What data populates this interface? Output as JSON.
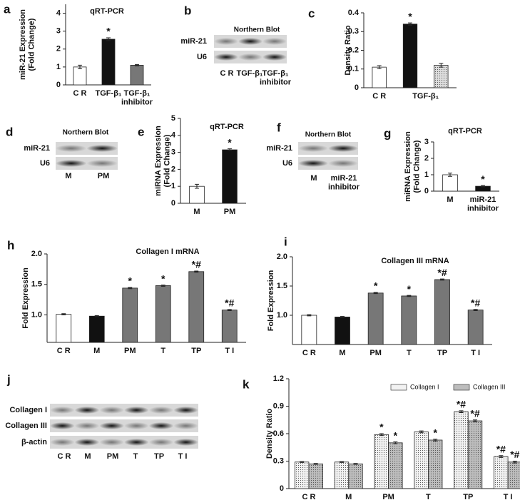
{
  "chart_data": [
    {
      "panel": "a",
      "type": "bar",
      "title": "qRT-PCR",
      "ylabel": "miR-21 Expression\n(Fold Change)",
      "categories": [
        "C R",
        "TGF-β₁",
        "TGF-β₁\ninhibitor"
      ],
      "values": [
        1.0,
        2.55,
        1.1
      ],
      "errors": [
        0.1,
        0.08,
        0.04
      ],
      "colors": [
        "#ffffff",
        "#111111",
        "#777777"
      ],
      "annotations": [
        null,
        "*",
        null
      ],
      "ylim": [
        0,
        4.5
      ],
      "yticks": [
        0,
        1,
        2,
        3,
        4
      ]
    },
    {
      "panel": "c",
      "type": "bar",
      "ylabel": "Density Ratio",
      "categories": [
        "C R",
        null,
        null
      ],
      "category_groups": [
        {
          "label": "TGF-β₁",
          "span": [
            1,
            2
          ]
        }
      ],
      "values": [
        0.11,
        0.34,
        0.12
      ],
      "errors": [
        0.008,
        0.006,
        0.01
      ],
      "colors": [
        "#ffffff",
        "#111111",
        "#dddddd"
      ],
      "annotations": [
        null,
        "*",
        null
      ],
      "ylim": [
        0,
        0.4
      ],
      "yticks": [
        0,
        0.1,
        0.2,
        0.3,
        0.4
      ]
    },
    {
      "panel": "e",
      "type": "bar",
      "title": "qRT-PCR",
      "ylabel": "miRNA Expression\n(Fold Change)",
      "categories": [
        "M",
        "PM"
      ],
      "values": [
        1.0,
        3.15
      ],
      "errors": [
        0.12,
        0.06
      ],
      "colors": [
        "#ffffff",
        "#111111"
      ],
      "annotations": [
        null,
        "*"
      ],
      "ylim": [
        0,
        5
      ],
      "yticks": [
        0,
        1,
        2,
        3,
        4,
        5
      ]
    },
    {
      "panel": "g",
      "type": "bar",
      "title": "qRT-PCR",
      "ylabel": "miRNA Expression\n(Fold Change)",
      "categories": [
        "M",
        "miR-21\ninhibitor"
      ],
      "values": [
        1.0,
        0.3
      ],
      "errors": [
        0.1,
        0.04
      ],
      "colors": [
        "#ffffff",
        "#111111"
      ],
      "annotations": [
        null,
        "*"
      ],
      "ylim": [
        0,
        3
      ],
      "yticks": [
        0,
        1,
        2,
        3
      ]
    },
    {
      "panel": "h",
      "type": "bar",
      "title": "Collagen I mRNA",
      "ylabel": "Fold Expression",
      "categories": [
        "C R",
        "M",
        "PM",
        "T",
        "TP",
        "T I"
      ],
      "values": [
        1.01,
        0.98,
        1.44,
        1.48,
        1.71,
        1.08
      ],
      "errors": [
        0.01,
        0.01,
        0.01,
        0.01,
        0.01,
        0.01
      ],
      "colors": [
        "#ffffff",
        "#111111",
        "#777777",
        "#777777",
        "#777777",
        "#777777"
      ],
      "annotations": [
        null,
        null,
        "*",
        "*",
        "*#",
        "*#"
      ],
      "ylim": [
        0.55,
        2.0
      ],
      "yticks": [
        {
          "value": 1,
          "label": "1.0"
        },
        1.5,
        {
          "value": 2,
          "label": "2.0"
        }
      ]
    },
    {
      "panel": "i",
      "type": "bar",
      "title": "Collagen III mRNA",
      "ylabel": "Fold Expression",
      "categories": [
        "C R",
        "M",
        "PM",
        "T",
        "TP",
        "T I"
      ],
      "values": [
        1.0,
        0.97,
        1.38,
        1.33,
        1.61,
        1.09
      ],
      "errors": [
        0.01,
        0.01,
        0.01,
        0.01,
        0.01,
        0.01
      ],
      "colors": [
        "#ffffff",
        "#111111",
        "#777777",
        "#777777",
        "#777777",
        "#777777"
      ],
      "annotations": [
        null,
        null,
        "*",
        "*",
        "*#",
        "*#"
      ],
      "ylim": [
        0.5,
        2.0
      ],
      "yticks": [
        {
          "value": 1,
          "label": "1.0"
        },
        1.5,
        {
          "value": 2,
          "label": "2.0"
        }
      ]
    },
    {
      "panel": "k",
      "type": "grouped_bar",
      "ylabel": "Density Ratio",
      "categories": [
        "C R",
        "M",
        "PM",
        "T",
        "TP",
        "T I"
      ],
      "series": [
        {
          "name": "Collagen I",
          "color": "#f2f2f2",
          "values": [
            0.29,
            0.29,
            0.59,
            0.62,
            0.84,
            0.35
          ],
          "errors": [
            0.005,
            0.005,
            0.01,
            0.01,
            0.01,
            0.01
          ],
          "annotations": [
            null,
            null,
            "*",
            null,
            "*#",
            "*#"
          ]
        },
        {
          "name": "Collagen III",
          "color": "#bdbdbd",
          "values": [
            0.27,
            0.27,
            0.5,
            0.53,
            0.74,
            0.29
          ],
          "errors": [
            0.005,
            0.005,
            0.01,
            0.01,
            0.01,
            0.01
          ],
          "annotations": [
            null,
            null,
            "*",
            "*",
            "*#",
            "*#"
          ]
        }
      ],
      "ylim": [
        0,
        1.2
      ],
      "yticks": [
        0,
        0.3,
        0.6,
        0.9,
        1.2
      ]
    }
  ],
  "blots": [
    {
      "panel": "b",
      "title": "Northern Blot",
      "rows": [
        "miR-21",
        "U6"
      ],
      "lanes": [
        "C R",
        "TGF-β₁",
        "TGF-β₁\ninhibitor"
      ]
    },
    {
      "panel": "d",
      "title": "Northern Blot",
      "rows": [
        "miR-21",
        "U6"
      ],
      "lanes": [
        "M",
        "PM"
      ]
    },
    {
      "panel": "f",
      "title": "Northern Blot",
      "rows": [
        "miR-21",
        "U6"
      ],
      "lanes": [
        "M",
        "miR-21\ninhibitor"
      ]
    },
    {
      "panel": "j",
      "rows": [
        "Collagen I",
        "Collagen III",
        "β-actin"
      ],
      "lanes": [
        "C R",
        "M",
        "PM",
        "T",
        "TP",
        "T I"
      ]
    }
  ]
}
